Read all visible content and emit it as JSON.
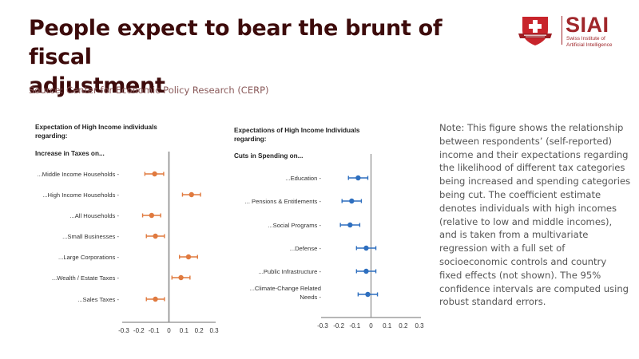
{
  "header": {
    "title": "People expect to bear the brunt of fiscal adjustment",
    "title_line1": "People expect to bear the brunt of fiscal",
    "title_line2": "adjustment",
    "source": "Source: Center for Economic Policy Research (CERP)"
  },
  "logo": {
    "name": "SIAI",
    "subtitle_line1": "Swiss Institute of",
    "subtitle_line2": "Artificial Intelligence",
    "icon": "swiss-cross-shield-icon",
    "color": "#a0272b"
  },
  "note": "Note: This figure shows the relationship between respondents’ (self-reported) income and their expectations regarding the likelihood of different tax categories being increased and spending categories being cut. The coefficient estimate denotes individuals with high incomes (relative to low and middle incomes), and is taken from a multivariate regression with a full set of socioeconomic controls and country fixed effects (not shown). The 95% confidence intervals are computed using robust standard errors.",
  "chart_data": [
    {
      "type": "scatter",
      "subtype": "coefficient-plot",
      "title_line1": "Expectation of High Income individuals",
      "title_line2": "regarding:",
      "subtitle": "Increase in Taxes on...",
      "color": "#e07a3f",
      "categories": [
        "...Middle Income Households -",
        "...High Income Households -",
        "...All Households -",
        "...Small Businesses -",
        "...Large Corporations -",
        "...Wealth / Estate Taxes -",
        "...Sales Taxes -"
      ],
      "estimates": [
        -0.095,
        0.15,
        -0.115,
        -0.09,
        0.13,
        0.08,
        -0.09
      ],
      "ci_low": [
        -0.16,
        0.09,
        -0.175,
        -0.15,
        0.07,
        0.02,
        -0.15
      ],
      "ci_high": [
        -0.035,
        0.21,
        -0.055,
        -0.03,
        0.19,
        0.14,
        -0.03
      ],
      "xlim": [
        -0.3,
        0.3
      ],
      "xticks": [
        "-0.3",
        "-0.2",
        "-0.1",
        "0",
        "0.1",
        "0.2",
        "0.3"
      ],
      "xlabel": "",
      "ylabel": "",
      "grid": false
    },
    {
      "type": "scatter",
      "subtype": "coefficient-plot",
      "title_line1": "Expectations of High Income Individuals",
      "title_line2": "regarding:",
      "subtitle": "Cuts in Spending on...",
      "color": "#2e6fbf",
      "categories": [
        "...Education -",
        "... Pensions & Entitlements -",
        "...Social Programs -",
        "...Defense -",
        "...Public Infrastructure -",
        "...Climate-Change Related Needs -"
      ],
      "category_lines": [
        [
          "...Education -"
        ],
        [
          "... Pensions & Entitlements -"
        ],
        [
          "...Social Programs -"
        ],
        [
          "...Defense -"
        ],
        [
          "...Public Infrastructure -"
        ],
        [
          "...Climate-Change Related",
          "Needs -"
        ]
      ],
      "estimates": [
        -0.08,
        -0.12,
        -0.13,
        -0.03,
        -0.03,
        -0.02
      ],
      "ci_low": [
        -0.14,
        -0.18,
        -0.19,
        -0.09,
        -0.09,
        -0.08
      ],
      "ci_high": [
        -0.02,
        -0.06,
        -0.07,
        0.03,
        0.03,
        0.04
      ],
      "xlim": [
        -0.3,
        0.3
      ],
      "xticks": [
        "-0.3",
        "-0.2",
        "-0.1",
        "0",
        "0.1",
        "0.2",
        "0.3"
      ],
      "xlabel": "",
      "ylabel": "",
      "grid": false
    }
  ]
}
